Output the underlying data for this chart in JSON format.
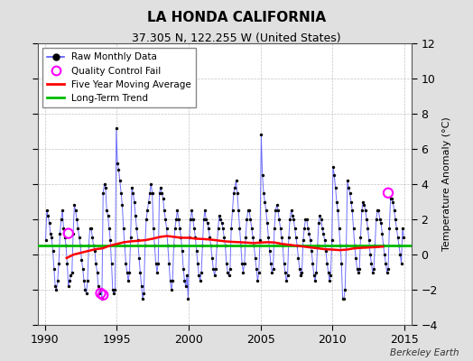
{
  "title": "LA HONDA CALIFORNIA",
  "subtitle": "37.305 N, 122.255 W (United States)",
  "ylabel": "Temperature Anomaly (°C)",
  "attribution": "Berkeley Earth",
  "xlim": [
    1989.5,
    2015.5
  ],
  "ylim": [
    -4,
    12
  ],
  "yticks": [
    -4,
    -2,
    0,
    2,
    4,
    6,
    8,
    10,
    12
  ],
  "xticks": [
    1990,
    1995,
    2000,
    2005,
    2010,
    2015
  ],
  "figure_bg": "#e0e0e0",
  "plot_bg": "#ffffff",
  "raw_line_color": "#5555ff",
  "raw_marker_color": "#000000",
  "moving_avg_color": "#ff0000",
  "trend_color": "#00bb00",
  "qc_fail_color": "#ff00ff",
  "legend_items": [
    "Raw Monthly Data",
    "Quality Control Fail",
    "Five Year Moving Average",
    "Long-Term Trend"
  ],
  "raw_data": [
    [
      1990.0417,
      0.8
    ],
    [
      1990.125,
      2.5
    ],
    [
      1990.2083,
      2.2
    ],
    [
      1990.2917,
      1.8
    ],
    [
      1990.375,
      1.2
    ],
    [
      1990.4583,
      1.0
    ],
    [
      1990.5417,
      0.2
    ],
    [
      1990.625,
      -0.8
    ],
    [
      1990.7083,
      -1.8
    ],
    [
      1990.7917,
      -2.0
    ],
    [
      1990.875,
      -1.5
    ],
    [
      1990.9583,
      -0.5
    ],
    [
      1991.0417,
      1.2
    ],
    [
      1991.125,
      2.0
    ],
    [
      1991.2083,
      2.5
    ],
    [
      1991.2917,
      1.5
    ],
    [
      1991.375,
      1.0
    ],
    [
      1991.4583,
      0.5
    ],
    [
      1991.5417,
      -0.5
    ],
    [
      1991.625,
      -1.8
    ],
    [
      1991.7083,
      -1.5
    ],
    [
      1991.7917,
      -1.2
    ],
    [
      1991.875,
      -1.0
    ],
    [
      1991.9583,
      1.2
    ],
    [
      1992.0417,
      2.8
    ],
    [
      1992.125,
      2.5
    ],
    [
      1992.2083,
      2.0
    ],
    [
      1992.2917,
      1.5
    ],
    [
      1992.375,
      1.0
    ],
    [
      1992.4583,
      0.5
    ],
    [
      1992.5417,
      -0.3
    ],
    [
      1992.625,
      -0.8
    ],
    [
      1992.7083,
      -1.5
    ],
    [
      1992.7917,
      -2.0
    ],
    [
      1992.875,
      -2.2
    ],
    [
      1992.9583,
      -1.5
    ],
    [
      1993.0417,
      0.5
    ],
    [
      1993.125,
      1.5
    ],
    [
      1993.2083,
      1.5
    ],
    [
      1993.2917,
      1.0
    ],
    [
      1993.375,
      0.5
    ],
    [
      1993.4583,
      0.2
    ],
    [
      1993.5417,
      -0.5
    ],
    [
      1993.625,
      -1.0
    ],
    [
      1993.7083,
      -1.8
    ],
    [
      1993.7917,
      -2.2
    ],
    [
      1993.875,
      -2.0
    ],
    [
      1993.9583,
      -2.5
    ],
    [
      1994.0417,
      3.5
    ],
    [
      1994.125,
      4.0
    ],
    [
      1994.2083,
      3.8
    ],
    [
      1994.2917,
      2.5
    ],
    [
      1994.375,
      2.2
    ],
    [
      1994.4583,
      1.5
    ],
    [
      1994.5417,
      0.8
    ],
    [
      1994.625,
      -0.5
    ],
    [
      1994.7083,
      -2.0
    ],
    [
      1994.7917,
      -2.2
    ],
    [
      1994.875,
      -2.0
    ],
    [
      1994.9583,
      7.2
    ],
    [
      1995.0417,
      5.2
    ],
    [
      1995.125,
      4.8
    ],
    [
      1995.2083,
      4.2
    ],
    [
      1995.2917,
      3.5
    ],
    [
      1995.375,
      2.8
    ],
    [
      1995.4583,
      1.5
    ],
    [
      1995.5417,
      0.5
    ],
    [
      1995.625,
      -0.5
    ],
    [
      1995.7083,
      -1.0
    ],
    [
      1995.7917,
      -1.5
    ],
    [
      1995.875,
      -1.0
    ],
    [
      1995.9583,
      1.0
    ],
    [
      1996.0417,
      3.8
    ],
    [
      1996.125,
      3.5
    ],
    [
      1996.2083,
      3.0
    ],
    [
      1996.2917,
      2.2
    ],
    [
      1996.375,
      1.5
    ],
    [
      1996.4583,
      0.8
    ],
    [
      1996.5417,
      -0.2
    ],
    [
      1996.625,
      -1.0
    ],
    [
      1996.7083,
      -1.8
    ],
    [
      1996.7917,
      -2.5
    ],
    [
      1996.875,
      -2.2
    ],
    [
      1996.9583,
      0.5
    ],
    [
      1997.0417,
      2.0
    ],
    [
      1997.125,
      2.5
    ],
    [
      1997.2083,
      3.0
    ],
    [
      1997.2917,
      3.5
    ],
    [
      1997.375,
      4.0
    ],
    [
      1997.4583,
      3.5
    ],
    [
      1997.5417,
      1.5
    ],
    [
      1997.625,
      0.5
    ],
    [
      1997.7083,
      -0.5
    ],
    [
      1997.7917,
      -1.0
    ],
    [
      1997.875,
      -0.5
    ],
    [
      1997.9583,
      3.5
    ],
    [
      1998.0417,
      3.8
    ],
    [
      1998.125,
      3.5
    ],
    [
      1998.2083,
      3.2
    ],
    [
      1998.2917,
      2.5
    ],
    [
      1998.375,
      2.0
    ],
    [
      1998.4583,
      1.5
    ],
    [
      1998.5417,
      0.5
    ],
    [
      1998.625,
      -0.5
    ],
    [
      1998.7083,
      -1.5
    ],
    [
      1998.7917,
      -2.0
    ],
    [
      1998.875,
      -1.5
    ],
    [
      1998.9583,
      0.5
    ],
    [
      1999.0417,
      1.5
    ],
    [
      1999.125,
      2.0
    ],
    [
      1999.2083,
      2.5
    ],
    [
      1999.2917,
      2.0
    ],
    [
      1999.375,
      1.5
    ],
    [
      1999.4583,
      1.0
    ],
    [
      1999.5417,
      0.2
    ],
    [
      1999.625,
      -0.8
    ],
    [
      1999.7083,
      -1.5
    ],
    [
      1999.7917,
      -1.8
    ],
    [
      1999.875,
      -1.2
    ],
    [
      1999.9583,
      -2.5
    ],
    [
      2000.0417,
      1.0
    ],
    [
      2000.125,
      2.0
    ],
    [
      2000.2083,
      2.5
    ],
    [
      2000.2917,
      2.0
    ],
    [
      2000.375,
      1.5
    ],
    [
      2000.4583,
      1.0
    ],
    [
      2000.5417,
      0.2
    ],
    [
      2000.625,
      -0.5
    ],
    [
      2000.7083,
      -1.2
    ],
    [
      2000.7917,
      -1.5
    ],
    [
      2000.875,
      -1.0
    ],
    [
      2000.9583,
      0.5
    ],
    [
      2001.0417,
      2.0
    ],
    [
      2001.125,
      2.5
    ],
    [
      2001.2083,
      2.0
    ],
    [
      2001.2917,
      1.8
    ],
    [
      2001.375,
      1.5
    ],
    [
      2001.4583,
      1.0
    ],
    [
      2001.5417,
      0.5
    ],
    [
      2001.625,
      -0.2
    ],
    [
      2001.7083,
      -0.8
    ],
    [
      2001.7917,
      -1.2
    ],
    [
      2001.875,
      -0.8
    ],
    [
      2001.9583,
      0.5
    ],
    [
      2002.0417,
      1.5
    ],
    [
      2002.125,
      2.2
    ],
    [
      2002.2083,
      2.0
    ],
    [
      2002.2917,
      1.8
    ],
    [
      2002.375,
      1.5
    ],
    [
      2002.4583,
      1.0
    ],
    [
      2002.5417,
      0.5
    ],
    [
      2002.625,
      -0.5
    ],
    [
      2002.7083,
      -1.0
    ],
    [
      2002.7917,
      -1.2
    ],
    [
      2002.875,
      -0.8
    ],
    [
      2002.9583,
      1.5
    ],
    [
      2003.0417,
      2.5
    ],
    [
      2003.125,
      3.5
    ],
    [
      2003.2083,
      3.8
    ],
    [
      2003.2917,
      4.2
    ],
    [
      2003.375,
      3.5
    ],
    [
      2003.4583,
      2.5
    ],
    [
      2003.5417,
      1.5
    ],
    [
      2003.625,
      0.5
    ],
    [
      2003.7083,
      -0.5
    ],
    [
      2003.7917,
      -1.0
    ],
    [
      2003.875,
      -0.5
    ],
    [
      2003.9583,
      1.0
    ],
    [
      2004.0417,
      2.0
    ],
    [
      2004.125,
      2.5
    ],
    [
      2004.2083,
      2.5
    ],
    [
      2004.2917,
      2.0
    ],
    [
      2004.375,
      1.5
    ],
    [
      2004.4583,
      1.0
    ],
    [
      2004.5417,
      0.5
    ],
    [
      2004.625,
      -0.2
    ],
    [
      2004.7083,
      -0.8
    ],
    [
      2004.7917,
      -1.5
    ],
    [
      2004.875,
      -1.0
    ],
    [
      2004.9583,
      0.8
    ],
    [
      2005.0417,
      6.8
    ],
    [
      2005.125,
      4.5
    ],
    [
      2005.2083,
      3.5
    ],
    [
      2005.2917,
      3.0
    ],
    [
      2005.375,
      2.5
    ],
    [
      2005.4583,
      1.8
    ],
    [
      2005.5417,
      1.0
    ],
    [
      2005.625,
      0.2
    ],
    [
      2005.7083,
      -0.5
    ],
    [
      2005.7917,
      -1.0
    ],
    [
      2005.875,
      -0.8
    ],
    [
      2005.9583,
      1.5
    ],
    [
      2006.0417,
      2.5
    ],
    [
      2006.125,
      2.8
    ],
    [
      2006.2083,
      2.5
    ],
    [
      2006.2917,
      2.0
    ],
    [
      2006.375,
      1.5
    ],
    [
      2006.4583,
      1.0
    ],
    [
      2006.5417,
      0.5
    ],
    [
      2006.625,
      -0.5
    ],
    [
      2006.7083,
      -1.0
    ],
    [
      2006.7917,
      -1.5
    ],
    [
      2006.875,
      -1.2
    ],
    [
      2006.9583,
      1.0
    ],
    [
      2007.0417,
      2.0
    ],
    [
      2007.125,
      2.5
    ],
    [
      2007.2083,
      2.2
    ],
    [
      2007.2917,
      2.0
    ],
    [
      2007.375,
      1.5
    ],
    [
      2007.4583,
      1.0
    ],
    [
      2007.5417,
      0.5
    ],
    [
      2007.625,
      -0.2
    ],
    [
      2007.7083,
      -0.8
    ],
    [
      2007.7917,
      -1.2
    ],
    [
      2007.875,
      -1.0
    ],
    [
      2007.9583,
      0.8
    ],
    [
      2008.0417,
      1.5
    ],
    [
      2008.125,
      2.0
    ],
    [
      2008.2083,
      2.0
    ],
    [
      2008.2917,
      1.5
    ],
    [
      2008.375,
      1.2
    ],
    [
      2008.4583,
      0.8
    ],
    [
      2008.5417,
      0.2
    ],
    [
      2008.625,
      -0.5
    ],
    [
      2008.7083,
      -1.2
    ],
    [
      2008.7917,
      -1.5
    ],
    [
      2008.875,
      -1.0
    ],
    [
      2008.9583,
      0.5
    ],
    [
      2009.0417,
      1.8
    ],
    [
      2009.125,
      2.2
    ],
    [
      2009.2083,
      2.0
    ],
    [
      2009.2917,
      1.5
    ],
    [
      2009.375,
      1.2
    ],
    [
      2009.4583,
      0.8
    ],
    [
      2009.5417,
      0.2
    ],
    [
      2009.625,
      -0.5
    ],
    [
      2009.7083,
      -1.0
    ],
    [
      2009.7917,
      -1.5
    ],
    [
      2009.875,
      -1.2
    ],
    [
      2009.9583,
      0.8
    ],
    [
      2010.0417,
      5.0
    ],
    [
      2010.125,
      4.5
    ],
    [
      2010.2083,
      3.8
    ],
    [
      2010.2917,
      3.0
    ],
    [
      2010.375,
      2.5
    ],
    [
      2010.4583,
      1.5
    ],
    [
      2010.5417,
      0.5
    ],
    [
      2010.625,
      -0.5
    ],
    [
      2010.7083,
      -2.5
    ],
    [
      2010.7917,
      -2.5
    ],
    [
      2010.875,
      -2.0
    ],
    [
      2010.9583,
      0.5
    ],
    [
      2011.0417,
      4.2
    ],
    [
      2011.125,
      3.8
    ],
    [
      2011.2083,
      3.5
    ],
    [
      2011.2917,
      3.0
    ],
    [
      2011.375,
      2.5
    ],
    [
      2011.4583,
      1.5
    ],
    [
      2011.5417,
      0.5
    ],
    [
      2011.625,
      -0.2
    ],
    [
      2011.7083,
      -0.8
    ],
    [
      2011.7917,
      -1.0
    ],
    [
      2011.875,
      -0.8
    ],
    [
      2011.9583,
      1.0
    ],
    [
      2012.0417,
      2.5
    ],
    [
      2012.125,
      3.0
    ],
    [
      2012.2083,
      2.8
    ],
    [
      2012.2917,
      2.5
    ],
    [
      2012.375,
      2.0
    ],
    [
      2012.4583,
      1.5
    ],
    [
      2012.5417,
      0.8
    ],
    [
      2012.625,
      0.0
    ],
    [
      2012.7083,
      -0.5
    ],
    [
      2012.7917,
      -1.0
    ],
    [
      2012.875,
      -0.8
    ],
    [
      2012.9583,
      0.5
    ],
    [
      2013.0417,
      2.0
    ],
    [
      2013.125,
      2.5
    ],
    [
      2013.2083,
      2.5
    ],
    [
      2013.2917,
      2.0
    ],
    [
      2013.375,
      1.8
    ],
    [
      2013.4583,
      1.2
    ],
    [
      2013.5417,
      0.5
    ],
    [
      2013.625,
      0.0
    ],
    [
      2013.7083,
      -0.5
    ],
    [
      2013.7917,
      -1.0
    ],
    [
      2013.875,
      -0.8
    ],
    [
      2013.9583,
      1.5
    ],
    [
      2014.0417,
      3.2
    ],
    [
      2014.125,
      3.2
    ],
    [
      2014.2083,
      3.0
    ],
    [
      2014.2917,
      2.5
    ],
    [
      2014.375,
      2.0
    ],
    [
      2014.4583,
      1.5
    ],
    [
      2014.5417,
      1.0
    ],
    [
      2014.625,
      0.5
    ],
    [
      2014.7083,
      0.0
    ],
    [
      2014.7917,
      -0.5
    ],
    [
      2014.875,
      1.5
    ],
    [
      2014.9583,
      1.0
    ]
  ],
  "qc_fail_points": [
    [
      1991.625,
      1.2
    ],
    [
      1993.875,
      -2.2
    ],
    [
      1994.0417,
      -2.3
    ],
    [
      2013.875,
      3.5
    ]
  ],
  "moving_avg": [
    [
      1991.5,
      -0.2
    ],
    [
      1992.0,
      0.0
    ],
    [
      1992.5,
      0.1
    ],
    [
      1993.0,
      0.2
    ],
    [
      1993.5,
      0.3
    ],
    [
      1994.0,
      0.35
    ],
    [
      1994.5,
      0.5
    ],
    [
      1995.0,
      0.6
    ],
    [
      1995.5,
      0.7
    ],
    [
      1996.0,
      0.75
    ],
    [
      1996.5,
      0.78
    ],
    [
      1997.0,
      0.82
    ],
    [
      1997.5,
      0.9
    ],
    [
      1998.0,
      1.0
    ],
    [
      1998.5,
      1.05
    ],
    [
      1999.0,
      1.0
    ],
    [
      1999.5,
      0.95
    ],
    [
      2000.0,
      0.95
    ],
    [
      2000.5,
      0.9
    ],
    [
      2001.0,
      0.88
    ],
    [
      2001.5,
      0.85
    ],
    [
      2002.0,
      0.8
    ],
    [
      2002.5,
      0.75
    ],
    [
      2003.0,
      0.72
    ],
    [
      2003.5,
      0.7
    ],
    [
      2004.0,
      0.68
    ],
    [
      2004.5,
      0.65
    ],
    [
      2005.0,
      0.68
    ],
    [
      2005.5,
      0.7
    ],
    [
      2006.0,
      0.68
    ],
    [
      2006.5,
      0.6
    ],
    [
      2007.0,
      0.55
    ],
    [
      2007.5,
      0.5
    ],
    [
      2008.0,
      0.45
    ],
    [
      2008.5,
      0.4
    ],
    [
      2009.0,
      0.35
    ],
    [
      2009.5,
      0.3
    ],
    [
      2010.0,
      0.28
    ],
    [
      2010.5,
      0.25
    ],
    [
      2011.0,
      0.28
    ],
    [
      2011.5,
      0.35
    ],
    [
      2012.0,
      0.38
    ],
    [
      2012.5,
      0.4
    ],
    [
      2013.0,
      0.42
    ],
    [
      2013.5,
      0.45
    ]
  ],
  "trend_y": 0.5,
  "trend_x_start": 1989.5,
  "trend_x_end": 2015.5
}
